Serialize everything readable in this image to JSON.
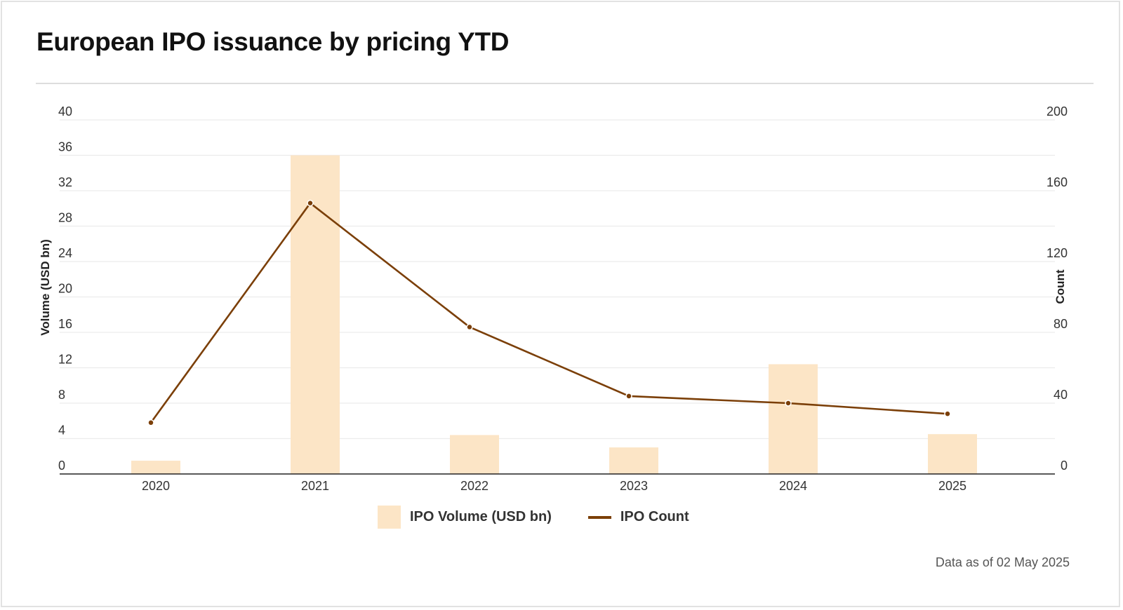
{
  "title": "European IPO issuance by pricing YTD",
  "footer": {
    "note": "Data as of 02 May 2025"
  },
  "colors": {
    "bar": "#fce5c6",
    "line": "#7b3f08",
    "grid": "#ececec",
    "axis": "#222222",
    "border": "#e2e2e2"
  },
  "legend": {
    "items": [
      {
        "label": "IPO Volume (USD bn)",
        "type": "bar",
        "icon": "square-swatch"
      },
      {
        "label": "IPO Count",
        "type": "line",
        "icon": "line-swatch"
      }
    ],
    "placement": "bottom-center"
  },
  "chart_data": {
    "type": "bar+line",
    "title": "European IPO issuance by pricing YTD",
    "categories": [
      "2020",
      "2021",
      "2022",
      "2023",
      "2024",
      "2025"
    ],
    "series": [
      {
        "name": "IPO Volume (USD bn)",
        "type": "bar",
        "axis": "left",
        "values": [
          1.5,
          36.0,
          4.4,
          3.0,
          12.4,
          4.5
        ]
      },
      {
        "name": "IPO Count",
        "type": "line",
        "axis": "right",
        "values": [
          29,
          153,
          83,
          44,
          40,
          34
        ]
      }
    ],
    "y_left": {
      "label": "Volume (USD bn)",
      "range": [
        0,
        40
      ],
      "ticks": [
        0,
        4,
        8,
        12,
        16,
        20,
        24,
        28,
        32,
        36,
        40
      ]
    },
    "y_right": {
      "label": "Count",
      "range": [
        0,
        200
      ],
      "ticks": [
        0,
        40,
        80,
        120,
        160,
        200
      ]
    },
    "xlabel": "",
    "grid": true,
    "legend_position": "bottom-center"
  }
}
